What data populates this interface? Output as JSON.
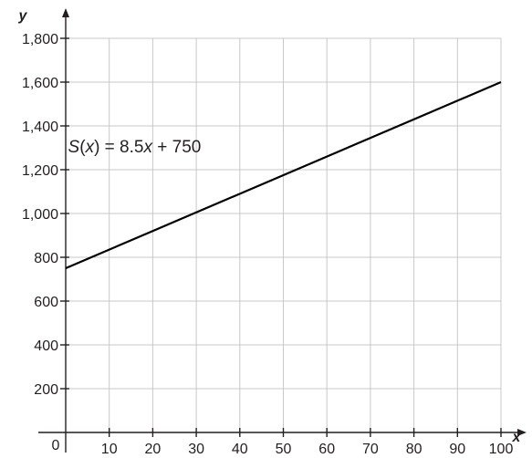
{
  "chart_data": {
    "type": "line",
    "title": "",
    "xlabel": "x",
    "ylabel": "y",
    "xlim": [
      0,
      100
    ],
    "ylim": [
      0,
      1800
    ],
    "x_ticks": [
      10,
      20,
      30,
      40,
      50,
      60,
      70,
      80,
      90,
      100
    ],
    "x_tick_labels": [
      "10",
      "20",
      "30",
      "40",
      "50",
      "60",
      "70",
      "80",
      "90",
      "100"
    ],
    "y_ticks": [
      200,
      400,
      600,
      800,
      1000,
      1200,
      1400,
      1600,
      1800
    ],
    "y_tick_labels": [
      "200",
      "400",
      "600",
      "800",
      "1,000",
      "1,200",
      "1,400",
      "1,600",
      "1,800"
    ],
    "origin_label": "0",
    "grid": true,
    "series": [
      {
        "x": [
          0,
          100
        ],
        "y": [
          750,
          1600
        ]
      }
    ],
    "annotation": {
      "parts": [
        "S",
        "(",
        "x",
        ") = 8.5",
        "x",
        " + 750"
      ],
      "x": 15,
      "y": 1280
    }
  }
}
